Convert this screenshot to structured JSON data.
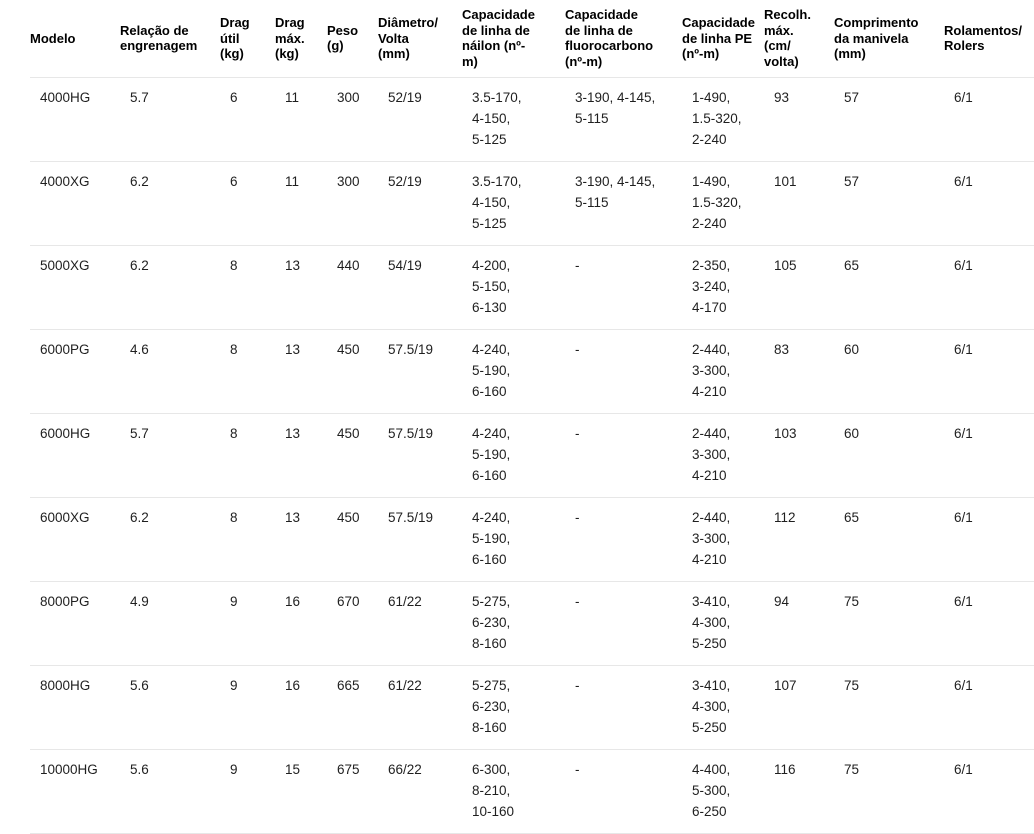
{
  "page": {
    "background_color": "#ffffff",
    "header_text_color": "#000000",
    "body_text_color": "#1f1f1f",
    "divider_color": "#e7e7e7"
  },
  "table": {
    "columns": [
      {
        "key": "modelo",
        "label": "Modelo",
        "lines": [
          "Modelo"
        ]
      },
      {
        "key": "relacao",
        "label": "Relação de engrenagem",
        "lines": [
          "Relação de",
          "engrenagem"
        ]
      },
      {
        "key": "drag_util",
        "label": "Drag útil (kg)",
        "lines": [
          "Drag",
          "útil",
          "(kg)"
        ]
      },
      {
        "key": "drag_max",
        "label": "Drag máx. (kg)",
        "lines": [
          "Drag",
          "máx.",
          "(kg)"
        ]
      },
      {
        "key": "peso",
        "label": "Peso (g)",
        "lines": [
          "Peso",
          "(g)"
        ]
      },
      {
        "key": "diametro",
        "label": "Diâmetro/Volta (mm)",
        "lines": [
          "Diâmetro/",
          "Volta",
          "(mm)"
        ]
      },
      {
        "key": "nailon",
        "label": "Capacidade de linha de náilon (nº-m)",
        "lines": [
          "Capacidade",
          "de linha de",
          "náilon (nº-",
          "m)"
        ]
      },
      {
        "key": "fluoro",
        "label": "Capacidade de linha de fluorocarbono (nº-m)",
        "lines": [
          "Capacidade",
          "de linha de",
          "fluorocarbono",
          "(nº-m)"
        ]
      },
      {
        "key": "pe",
        "label": "Capacidade de linha PE (nº-m)",
        "lines": [
          "Capacidade",
          "de linha PE",
          "(nº-m)"
        ]
      },
      {
        "key": "recolh",
        "label": "Recolh. máx. (cm/volta)",
        "lines": [
          "Recolh.",
          "máx.",
          "(cm/",
          "volta)"
        ]
      },
      {
        "key": "manivela",
        "label": "Comprimento da manivela (mm)",
        "lines": [
          "Comprimento",
          "da manivela",
          "(mm)"
        ]
      },
      {
        "key": "rolamentos",
        "label": "Rolamentos/Rolers",
        "lines": [
          "Rolamentos/",
          "Rolers"
        ]
      }
    ],
    "rows": [
      {
        "modelo": "4000HG",
        "relacao": "5.7",
        "drag_util": "6",
        "drag_max": "11",
        "peso": "300",
        "diametro": "52/19",
        "nailon": [
          "3.5-170,",
          "4-150,",
          "5-125"
        ],
        "fluoro": [
          "3-190, 4-145,",
          "5-115"
        ],
        "pe": [
          "1-490,",
          "1.5-320,",
          "2-240"
        ],
        "recolh": "93",
        "manivela": "57",
        "rolamentos": "6/1"
      },
      {
        "modelo": "4000XG",
        "relacao": "6.2",
        "drag_util": "6",
        "drag_max": "11",
        "peso": "300",
        "diametro": "52/19",
        "nailon": [
          "3.5-170,",
          "4-150,",
          "5-125"
        ],
        "fluoro": [
          "3-190, 4-145,",
          "5-115"
        ],
        "pe": [
          "1-490,",
          "1.5-320,",
          "2-240"
        ],
        "recolh": "101",
        "manivela": "57",
        "rolamentos": "6/1"
      },
      {
        "modelo": "5000XG",
        "relacao": "6.2",
        "drag_util": "8",
        "drag_max": "13",
        "peso": "440",
        "diametro": "54/19",
        "nailon": [
          "4-200,",
          "5-150,",
          "6-130"
        ],
        "fluoro": [
          "-"
        ],
        "pe": [
          "2-350,",
          "3-240,",
          "4-170"
        ],
        "recolh": "105",
        "manivela": "65",
        "rolamentos": "6/1"
      },
      {
        "modelo": "6000PG",
        "relacao": "4.6",
        "drag_util": "8",
        "drag_max": "13",
        "peso": "450",
        "diametro": "57.5/19",
        "nailon": [
          "4-240,",
          "5-190,",
          "6-160"
        ],
        "fluoro": [
          "-"
        ],
        "pe": [
          "2-440,",
          "3-300,",
          "4-210"
        ],
        "recolh": "83",
        "manivela": "60",
        "rolamentos": "6/1"
      },
      {
        "modelo": "6000HG",
        "relacao": "5.7",
        "drag_util": "8",
        "drag_max": "13",
        "peso": "450",
        "diametro": "57.5/19",
        "nailon": [
          "4-240,",
          "5-190,",
          "6-160"
        ],
        "fluoro": [
          "-"
        ],
        "pe": [
          "2-440,",
          "3-300,",
          "4-210"
        ],
        "recolh": "103",
        "manivela": "60",
        "rolamentos": "6/1"
      },
      {
        "modelo": "6000XG",
        "relacao": "6.2",
        "drag_util": "8",
        "drag_max": "13",
        "peso": "450",
        "diametro": "57.5/19",
        "nailon": [
          "4-240,",
          "5-190,",
          "6-160"
        ],
        "fluoro": [
          "-"
        ],
        "pe": [
          "2-440,",
          "3-300,",
          "4-210"
        ],
        "recolh": "112",
        "manivela": "65",
        "rolamentos": "6/1"
      },
      {
        "modelo": "8000PG",
        "relacao": "4.9",
        "drag_util": "9",
        "drag_max": "16",
        "peso": "670",
        "diametro": "61/22",
        "nailon": [
          "5-275,",
          "6-230,",
          "8-160"
        ],
        "fluoro": [
          "-"
        ],
        "pe": [
          "3-410,",
          "4-300,",
          "5-250"
        ],
        "recolh": "94",
        "manivela": "75",
        "rolamentos": "6/1"
      },
      {
        "modelo": "8000HG",
        "relacao": "5.6",
        "drag_util": "9",
        "drag_max": "16",
        "peso": "665",
        "diametro": "61/22",
        "nailon": [
          "5-275,",
          "6-230,",
          "8-160"
        ],
        "fluoro": [
          "-"
        ],
        "pe": [
          "3-410,",
          "4-300,",
          "5-250"
        ],
        "recolh": "107",
        "manivela": "75",
        "rolamentos": "6/1"
      },
      {
        "modelo": "10000HG",
        "relacao": "5.6",
        "drag_util": "9",
        "drag_max": "15",
        "peso": "675",
        "diametro": "66/22",
        "nailon": [
          "6-300,",
          "8-210,",
          "10-160"
        ],
        "fluoro": [
          "-"
        ],
        "pe": [
          "4-400,",
          "5-300,",
          "6-250"
        ],
        "recolh": "116",
        "manivela": "75",
        "rolamentos": "6/1"
      }
    ]
  }
}
